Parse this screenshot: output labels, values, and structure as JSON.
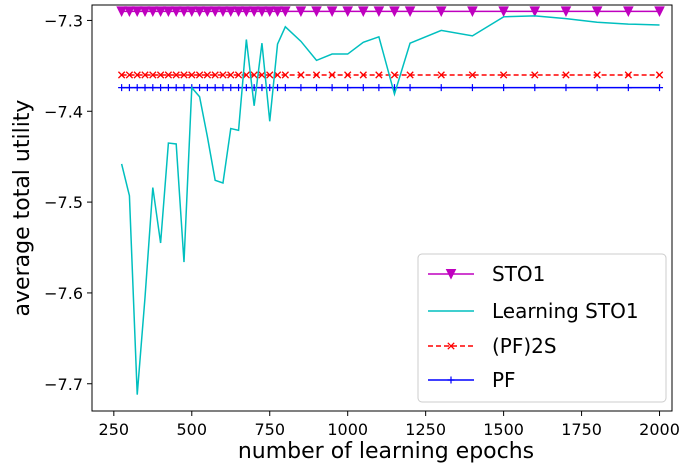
{
  "chart_data": {
    "type": "line",
    "xlabel": "number of learning epochs",
    "ylabel": "average total utility",
    "xlim": [
      180,
      2040
    ],
    "ylim": [
      -7.73,
      -7.283
    ],
    "xticks": [
      250,
      500,
      750,
      1000,
      1250,
      1500,
      1750,
      2000
    ],
    "yticks": [
      -7.3,
      -7.4,
      -7.5,
      -7.6,
      -7.7
    ],
    "xtick_labels": [
      "250",
      "500",
      "750",
      "1000",
      "1250",
      "1500",
      "1750",
      "2000"
    ],
    "ytick_labels": [
      "−7.3",
      "−7.4",
      "−7.5",
      "−7.6",
      "−7.7"
    ],
    "grid": false,
    "legend_position": "bottom-right",
    "series": [
      {
        "name": "STO1",
        "color": "#bf00bf",
        "linestyle": "solid",
        "marker": "triangle-down",
        "x": [
          275,
          300,
          325,
          350,
          375,
          400,
          425,
          450,
          475,
          500,
          525,
          550,
          575,
          600,
          625,
          650,
          675,
          700,
          725,
          750,
          775,
          800,
          850,
          900,
          950,
          1000,
          1050,
          1100,
          1150,
          1200,
          1300,
          1400,
          1500,
          1600,
          1700,
          1800,
          1900,
          2000
        ],
        "y": [
          -7.29,
          -7.29,
          -7.29,
          -7.29,
          -7.29,
          -7.29,
          -7.29,
          -7.29,
          -7.29,
          -7.29,
          -7.29,
          -7.29,
          -7.29,
          -7.29,
          -7.29,
          -7.29,
          -7.29,
          -7.29,
          -7.29,
          -7.29,
          -7.29,
          -7.29,
          -7.29,
          -7.29,
          -7.29,
          -7.29,
          -7.29,
          -7.29,
          -7.29,
          -7.29,
          -7.29,
          -7.29,
          -7.29,
          -7.29,
          -7.29,
          -7.29,
          -7.29,
          -7.29
        ]
      },
      {
        "name": "Learning STO1",
        "color": "#00bfbf",
        "linestyle": "solid",
        "marker": "none",
        "x": [
          275,
          300,
          325,
          350,
          375,
          400,
          425,
          450,
          475,
          500,
          525,
          550,
          575,
          600,
          625,
          650,
          675,
          700,
          725,
          750,
          775,
          800,
          850,
          900,
          950,
          1000,
          1050,
          1100,
          1150,
          1200,
          1300,
          1400,
          1500,
          1600,
          1700,
          1800,
          1900,
          2000
        ],
        "y": [
          -7.458,
          -7.493,
          -7.712,
          -7.605,
          -7.484,
          -7.545,
          -7.435,
          -7.436,
          -7.566,
          -7.374,
          -7.384,
          -7.428,
          -7.476,
          -7.479,
          -7.419,
          -7.421,
          -7.321,
          -7.394,
          -7.325,
          -7.411,
          -7.326,
          -7.307,
          -7.323,
          -7.344,
          -7.337,
          -7.337,
          -7.324,
          -7.318,
          -7.381,
          -7.325,
          -7.311,
          -7.317,
          -7.296,
          -7.295,
          -7.298,
          -7.302,
          -7.304,
          -7.305
        ]
      },
      {
        "name": "(PF)2S",
        "color": "#ff0000",
        "linestyle": "dashed",
        "marker": "x",
        "x": [
          275,
          300,
          325,
          350,
          375,
          400,
          425,
          450,
          475,
          500,
          525,
          550,
          575,
          600,
          625,
          650,
          675,
          700,
          725,
          750,
          775,
          800,
          850,
          900,
          950,
          1000,
          1050,
          1100,
          1150,
          1200,
          1300,
          1400,
          1500,
          1600,
          1700,
          1800,
          1900,
          2000
        ],
        "y": [
          -7.36,
          -7.36,
          -7.36,
          -7.36,
          -7.36,
          -7.36,
          -7.36,
          -7.36,
          -7.36,
          -7.36,
          -7.36,
          -7.36,
          -7.36,
          -7.36,
          -7.36,
          -7.36,
          -7.36,
          -7.36,
          -7.36,
          -7.36,
          -7.36,
          -7.36,
          -7.36,
          -7.36,
          -7.36,
          -7.36,
          -7.36,
          -7.36,
          -7.36,
          -7.36,
          -7.36,
          -7.36,
          -7.36,
          -7.36,
          -7.36,
          -7.36,
          -7.36,
          -7.36
        ]
      },
      {
        "name": "PF",
        "color": "#0000ff",
        "linestyle": "solid",
        "marker": "plus",
        "x": [
          275,
          300,
          325,
          350,
          375,
          400,
          425,
          450,
          475,
          500,
          525,
          550,
          575,
          600,
          625,
          650,
          675,
          700,
          725,
          750,
          775,
          800,
          850,
          900,
          950,
          1000,
          1050,
          1100,
          1150,
          1200,
          1300,
          1400,
          1500,
          1600,
          1700,
          1800,
          1900,
          2000
        ],
        "y": [
          -7.374,
          -7.374,
          -7.374,
          -7.374,
          -7.374,
          -7.374,
          -7.374,
          -7.374,
          -7.374,
          -7.374,
          -7.374,
          -7.374,
          -7.374,
          -7.374,
          -7.374,
          -7.374,
          -7.374,
          -7.374,
          -7.374,
          -7.374,
          -7.374,
          -7.374,
          -7.374,
          -7.374,
          -7.374,
          -7.374,
          -7.374,
          -7.374,
          -7.374,
          -7.374,
          -7.374,
          -7.374,
          -7.374,
          -7.374,
          -7.374,
          -7.374,
          -7.374,
          -7.374
        ]
      }
    ]
  }
}
